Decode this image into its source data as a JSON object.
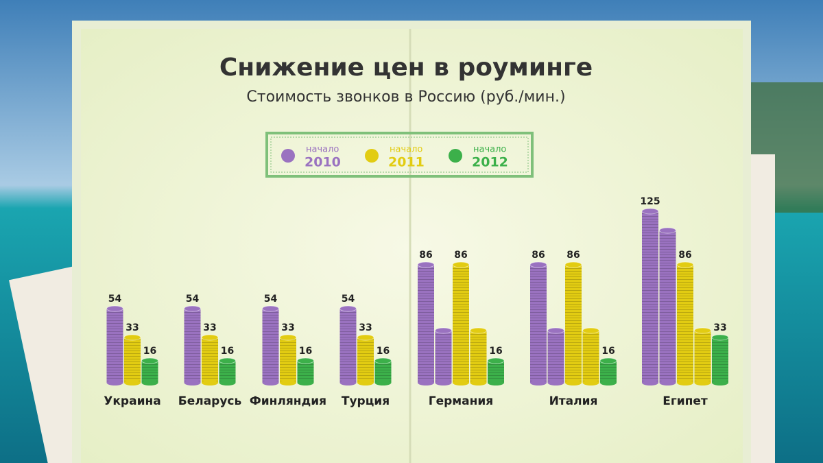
{
  "chart_data": {
    "type": "coin-stacks",
    "title": "Снижение цен в роуминге",
    "subtitle": "Стоимость звонков в Россию (руб./мин.)",
    "legend_caption": "начало",
    "series": [
      {
        "name": "2010",
        "color": "#9a72c0"
      },
      {
        "name": "2011",
        "color": "#e2cc12"
      },
      {
        "name": "2012",
        "color": "#3cb04a"
      }
    ],
    "groups": [
      {
        "category": "Украина",
        "bars": [
          {
            "series": "2010",
            "value": 54,
            "show_label": true
          },
          {
            "series": "2011",
            "value": 33,
            "show_label": true
          },
          {
            "series": "2012",
            "value": 16,
            "show_label": true
          }
        ]
      },
      {
        "category": "Беларусь",
        "bars": [
          {
            "series": "2010",
            "value": 54,
            "show_label": true
          },
          {
            "series": "2011",
            "value": 33,
            "show_label": true
          },
          {
            "series": "2012",
            "value": 16,
            "show_label": true
          }
        ]
      },
      {
        "category": "Финляндия",
        "bars": [
          {
            "series": "2010",
            "value": 54,
            "show_label": true
          },
          {
            "series": "2011",
            "value": 33,
            "show_label": true
          },
          {
            "series": "2012",
            "value": 16,
            "show_label": true
          }
        ]
      },
      {
        "category": "Турция",
        "bars": [
          {
            "series": "2010",
            "value": 54,
            "show_label": true
          },
          {
            "series": "2011",
            "value": 33,
            "show_label": true
          },
          {
            "series": "2012",
            "value": 16,
            "show_label": true
          }
        ]
      },
      {
        "category": "Германия",
        "bars": [
          {
            "series": "2010",
            "value": 86,
            "show_label": true
          },
          {
            "series": "2010",
            "value": 38,
            "show_label": false
          },
          {
            "series": "2011",
            "value": 86,
            "show_label": true
          },
          {
            "series": "2011",
            "value": 38,
            "show_label": false
          },
          {
            "series": "2012",
            "value": 16,
            "show_label": true
          }
        ]
      },
      {
        "category": "Италия",
        "bars": [
          {
            "series": "2010",
            "value": 86,
            "show_label": true
          },
          {
            "series": "2010",
            "value": 38,
            "show_label": false
          },
          {
            "series": "2011",
            "value": 86,
            "show_label": true
          },
          {
            "series": "2011",
            "value": 38,
            "show_label": false
          },
          {
            "series": "2012",
            "value": 16,
            "show_label": true
          }
        ]
      },
      {
        "category": "Египет",
        "bars": [
          {
            "series": "2010",
            "value": 125,
            "show_label": true
          },
          {
            "series": "2010",
            "value": 111,
            "show_label": false
          },
          {
            "series": "2011",
            "value": 86,
            "show_label": true
          },
          {
            "series": "2011",
            "value": 38,
            "show_label": false
          },
          {
            "series": "2012",
            "value": 33,
            "show_label": true
          }
        ]
      }
    ]
  }
}
